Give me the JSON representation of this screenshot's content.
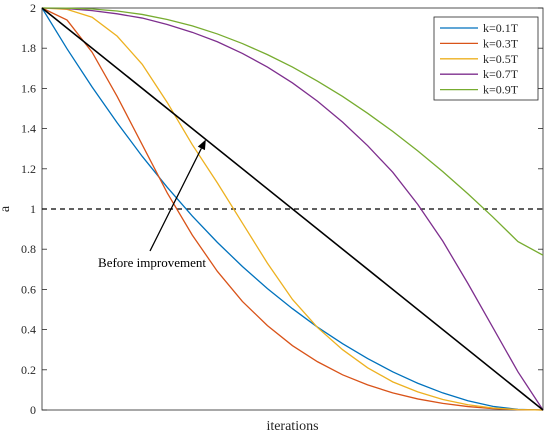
{
  "chart_data": {
    "type": "line",
    "xlabel": "iterations",
    "ylabel": "a",
    "x_range": [
      0,
      1
    ],
    "ylim": [
      0,
      2
    ],
    "yticks": [
      "0",
      "0.2",
      "0.4",
      "0.6",
      "0.8",
      "1",
      "1.2",
      "1.4",
      "1.6",
      "1.8",
      "2"
    ],
    "xticks": [],
    "grid": false,
    "legend_position": "top-right",
    "series": [
      {
        "name": "k=0.1T",
        "color": "#0072BD",
        "x": [
          0,
          0.05,
          0.1,
          0.15,
          0.2,
          0.25,
          0.3,
          0.35,
          0.4,
          0.45,
          0.5,
          0.55,
          0.6,
          0.65,
          0.7,
          0.75,
          0.8,
          0.85,
          0.9,
          0.95,
          1.0
        ],
        "y": [
          2.0,
          1.797,
          1.607,
          1.429,
          1.262,
          1.108,
          0.965,
          0.834,
          0.714,
          0.604,
          0.504,
          0.412,
          0.33,
          0.256,
          0.19,
          0.133,
          0.085,
          0.046,
          0.018,
          0.003,
          0.0
        ]
      },
      {
        "name": "k=0.3T",
        "color": "#D95319",
        "x": [
          0,
          0.05,
          0.1,
          0.15,
          0.2,
          0.25,
          0.3,
          0.35,
          0.4,
          0.45,
          0.5,
          0.55,
          0.6,
          0.65,
          0.7,
          0.75,
          0.8,
          0.85,
          0.9,
          0.95,
          1.0
        ],
        "y": [
          2.0,
          1.94,
          1.78,
          1.56,
          1.32,
          1.08,
          0.87,
          0.69,
          0.54,
          0.42,
          0.32,
          0.24,
          0.175,
          0.125,
          0.085,
          0.055,
          0.033,
          0.017,
          0.007,
          0.002,
          0.0
        ]
      },
      {
        "name": "k=0.5T",
        "color": "#EDB120",
        "x": [
          0,
          0.05,
          0.1,
          0.15,
          0.2,
          0.25,
          0.3,
          0.35,
          0.4,
          0.45,
          0.5,
          0.55,
          0.6,
          0.65,
          0.7,
          0.75,
          0.8,
          0.85,
          0.9,
          0.95,
          1.0
        ],
        "y": [
          2.0,
          1.993,
          1.954,
          1.86,
          1.72,
          1.53,
          1.32,
          1.13,
          0.93,
          0.73,
          0.55,
          0.41,
          0.3,
          0.21,
          0.14,
          0.09,
          0.052,
          0.026,
          0.01,
          0.002,
          0.0
        ]
      },
      {
        "name": "k=0.7T",
        "color": "#7E2F8E",
        "x": [
          0,
          0.05,
          0.1,
          0.15,
          0.2,
          0.25,
          0.3,
          0.35,
          0.4,
          0.45,
          0.5,
          0.55,
          0.6,
          0.65,
          0.7,
          0.75,
          0.8,
          0.85,
          0.9,
          0.95,
          1.0
        ],
        "y": [
          2.0,
          1.997,
          1.987,
          1.971,
          1.95,
          1.918,
          1.879,
          1.832,
          1.774,
          1.706,
          1.627,
          1.536,
          1.432,
          1.315,
          1.183,
          1.023,
          0.84,
          0.63,
          0.41,
          0.19,
          0.0
        ]
      },
      {
        "name": "k=0.9T",
        "color": "#77AC30",
        "x": [
          0,
          0.05,
          0.1,
          0.15,
          0.2,
          0.25,
          0.3,
          0.35,
          0.4,
          0.45,
          0.5,
          0.55,
          0.6,
          0.65,
          0.7,
          0.75,
          0.8,
          0.85,
          0.9,
          0.95,
          1.0
        ],
        "y": [
          2.0,
          1.999,
          1.995,
          1.985,
          1.968,
          1.943,
          1.911,
          1.871,
          1.823,
          1.768,
          1.706,
          1.636,
          1.56,
          1.476,
          1.386,
          1.289,
          1.186,
          1.076,
          0.96,
          0.838,
          0.77
        ]
      },
      {
        "name": "",
        "color": "#000000",
        "x": [
          0,
          1
        ],
        "y": [
          2,
          0
        ]
      }
    ],
    "reference_line": {
      "y": 1,
      "style": "dashed",
      "color": "#000000"
    },
    "annotation": {
      "text": "Before improvement",
      "target": {
        "x": 0.327,
        "y": 1.346
      }
    }
  }
}
